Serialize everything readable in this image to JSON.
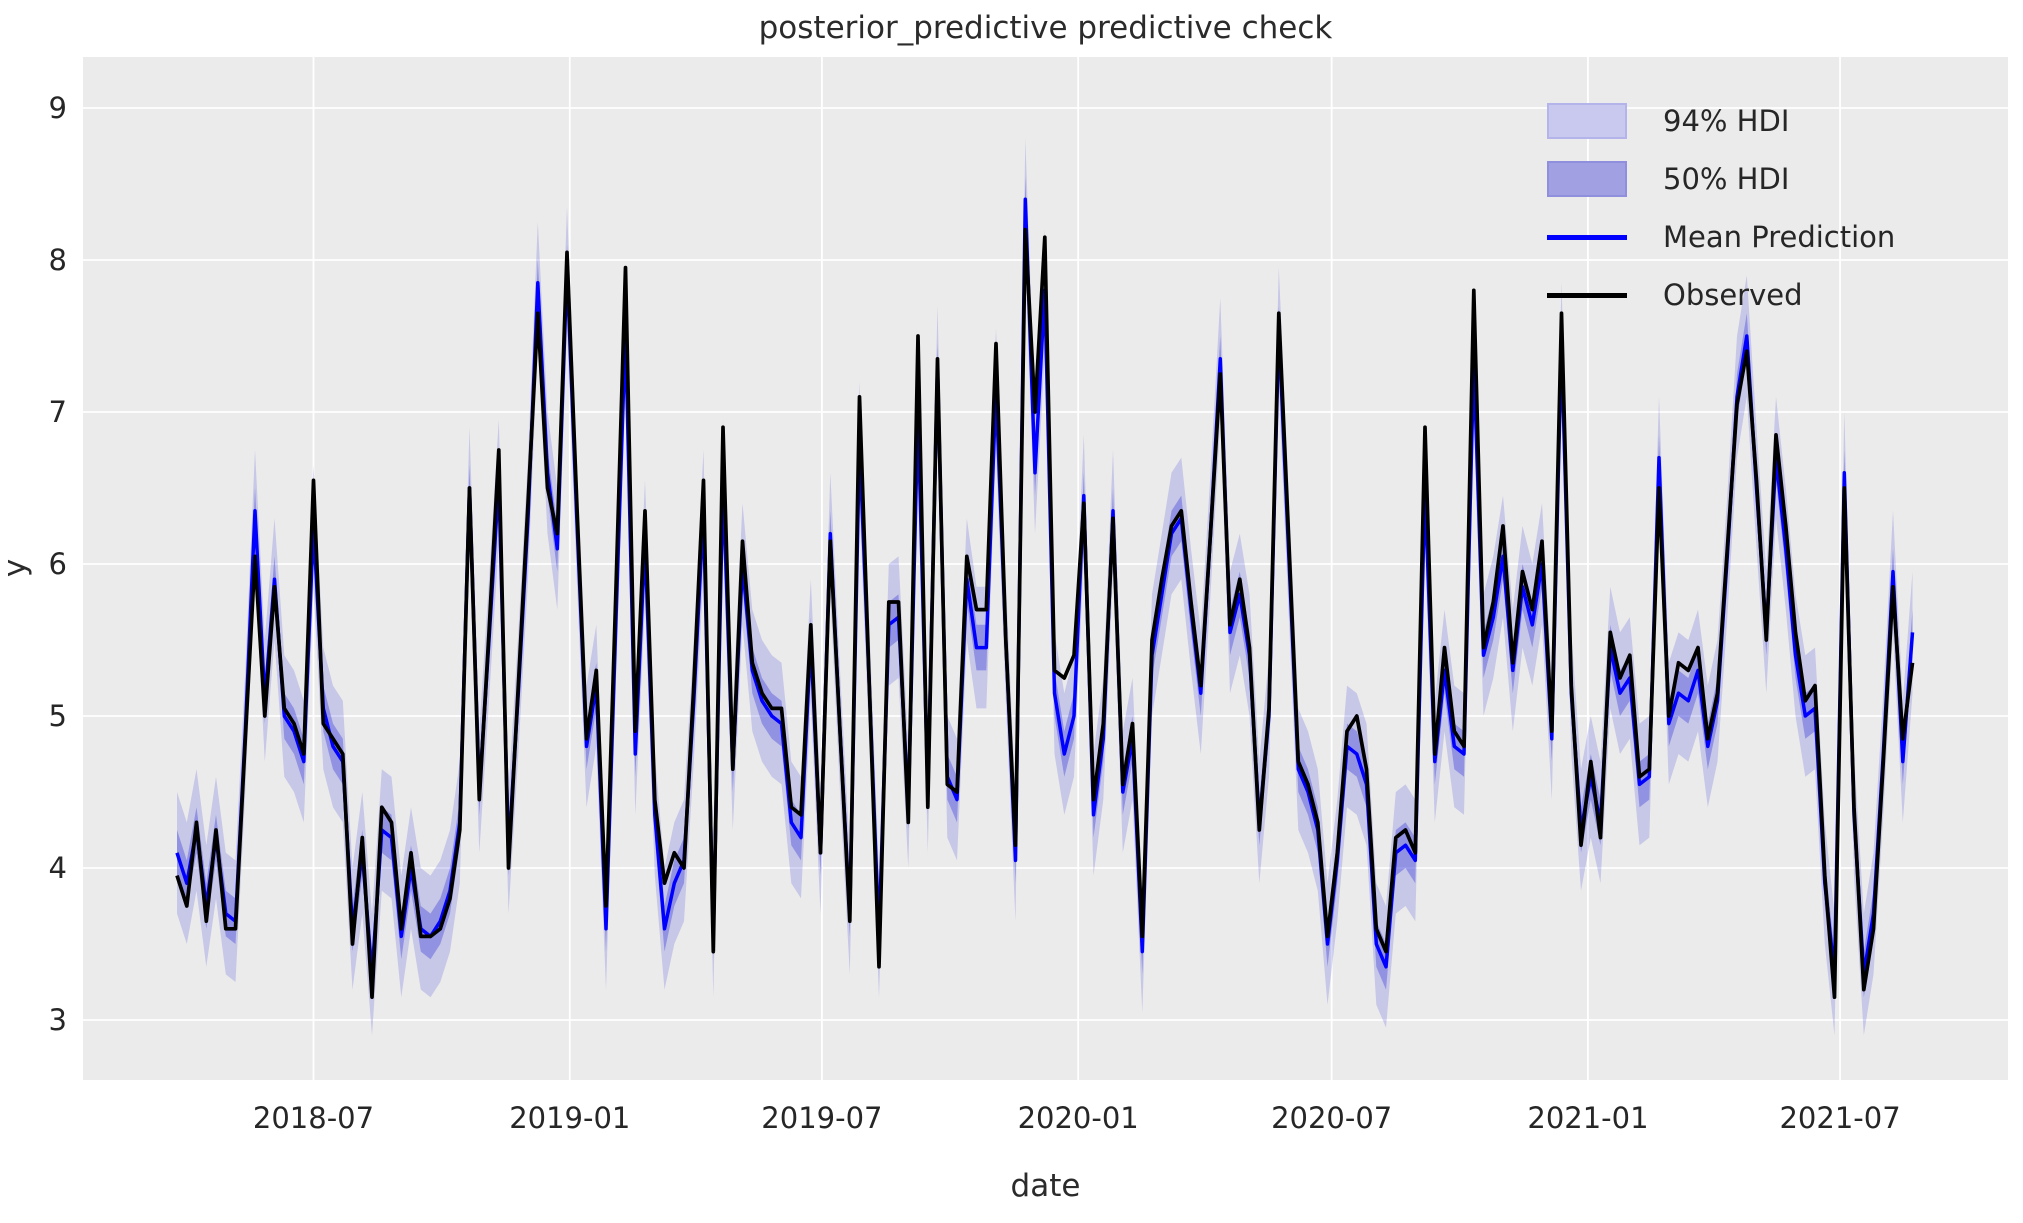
{
  "title": "posterior_predictive predictive check",
  "axes": {
    "xlabel": "date",
    "ylabel": "y",
    "x_ticks": [
      "2018-07",
      "2019-01",
      "2019-07",
      "2020-01",
      "2020-07",
      "2021-01",
      "2021-07"
    ],
    "y_ticks": [
      3,
      4,
      5,
      6,
      7,
      8,
      9
    ]
  },
  "legend": {
    "items": [
      {
        "label": "94% HDI",
        "swatch": "patch",
        "color": "#c9c9f0"
      },
      {
        "label": "50% HDI",
        "swatch": "patch",
        "color": "#a0a0e2"
      },
      {
        "label": "Mean Prediction",
        "swatch": "line",
        "color": "#0000ff"
      },
      {
        "label": "Observed",
        "swatch": "line",
        "color": "#000000"
      }
    ]
  },
  "colors": {
    "figure_bg": "#ffffff",
    "plot_bg": "#ebebeb",
    "grid": "#ffffff",
    "text": "#262626",
    "observed": "#000000",
    "mean": "#0000ff",
    "hdi94": "rgba(75,75,220,0.22)",
    "hdi50": "rgba(75,75,220,0.42)"
  },
  "chart_data": {
    "type": "line",
    "title": "posterior_predictive predictive check",
    "xlabel": "date",
    "ylabel": "y",
    "x_start": "2018-03-25",
    "x_step_days": 7,
    "n_points": 179,
    "x_tick_labels": [
      "2018-07",
      "2019-01",
      "2019-07",
      "2020-01",
      "2020-07",
      "2021-01",
      "2021-07"
    ],
    "y_tick_values": [
      3,
      4,
      5,
      6,
      7,
      8,
      9
    ],
    "ylim": [
      2.6,
      9.35
    ],
    "grid": true,
    "legend_position": "upper right",
    "series": [
      {
        "name": "Observed",
        "color": "#000000",
        "values": [
          3.95,
          3.75,
          4.3,
          3.65,
          4.25,
          3.6,
          3.6,
          4.85,
          6.05,
          5.0,
          5.85,
          5.05,
          4.95,
          4.75,
          6.55,
          4.95,
          4.85,
          4.75,
          3.5,
          4.2,
          3.15,
          4.4,
          4.3,
          3.6,
          4.1,
          3.55,
          3.55,
          3.6,
          3.8,
          4.25,
          6.5,
          4.45,
          5.55,
          6.75,
          4.0,
          5.2,
          6.4,
          7.65,
          6.5,
          6.2,
          8.05,
          6.4,
          4.85,
          5.3,
          3.75,
          5.8,
          7.95,
          4.9,
          6.35,
          4.45,
          3.9,
          4.1,
          4.0,
          5.2,
          6.55,
          3.45,
          6.9,
          4.65,
          6.15,
          5.35,
          5.15,
          5.05,
          5.05,
          4.4,
          4.35,
          5.6,
          4.1,
          6.15,
          4.9,
          3.65,
          7.1,
          5.2,
          3.35,
          5.75,
          5.75,
          4.3,
          7.5,
          4.4,
          7.35,
          4.55,
          4.5,
          6.05,
          5.7,
          5.7,
          7.45,
          5.5,
          4.15,
          8.2,
          7.0,
          8.15,
          5.3,
          5.25,
          5.4,
          6.4,
          4.45,
          4.95,
          6.3,
          4.55,
          4.95,
          3.55,
          5.5,
          5.9,
          6.25,
          6.35,
          5.75,
          5.2,
          6.2,
          7.25,
          5.6,
          5.9,
          5.45,
          4.25,
          5.05,
          7.65,
          6.2,
          4.7,
          4.55,
          4.3,
          3.55,
          4.1,
          4.9,
          5.0,
          4.65,
          3.6,
          3.45,
          4.2,
          4.25,
          4.1,
          6.9,
          4.75,
          5.45,
          4.9,
          4.8,
          7.8,
          5.45,
          5.75,
          6.25,
          5.35,
          5.95,
          5.7,
          6.15,
          4.9,
          7.65,
          5.2,
          4.15,
          4.7,
          4.2,
          5.55,
          5.25,
          5.4,
          4.6,
          4.65,
          6.5,
          5.0,
          5.35,
          5.3,
          5.45,
          4.85,
          5.15,
          6.1,
          7.05,
          7.4,
          6.55,
          5.5,
          6.85,
          6.25,
          5.55,
          5.1,
          5.2,
          3.95,
          3.15,
          6.5,
          4.4,
          3.2,
          3.6,
          4.7,
          5.85,
          4.85,
          5.35
        ]
      },
      {
        "name": "Mean Prediction",
        "color": "#0000ff",
        "values": [
          4.1,
          3.9,
          4.25,
          3.75,
          4.2,
          3.7,
          3.65,
          4.9,
          6.35,
          5.1,
          5.9,
          5.0,
          4.9,
          4.7,
          6.25,
          5.05,
          4.8,
          4.7,
          3.6,
          4.1,
          3.3,
          4.25,
          4.2,
          3.55,
          4.0,
          3.6,
          3.55,
          3.65,
          3.85,
          4.3,
          6.5,
          4.5,
          5.5,
          6.55,
          4.1,
          5.15,
          6.3,
          7.85,
          6.6,
          6.1,
          7.95,
          6.3,
          4.8,
          5.2,
          3.6,
          5.6,
          7.55,
          4.75,
          6.15,
          4.35,
          3.6,
          3.9,
          4.05,
          5.1,
          6.35,
          3.55,
          6.55,
          4.65,
          6.0,
          5.3,
          5.1,
          5.0,
          4.95,
          4.3,
          4.2,
          5.5,
          4.1,
          6.2,
          4.9,
          3.7,
          6.8,
          5.2,
          3.55,
          5.6,
          5.65,
          4.4,
          7.0,
          4.5,
          7.3,
          4.6,
          4.45,
          5.9,
          5.45,
          5.45,
          7.15,
          5.5,
          4.05,
          8.4,
          6.6,
          7.8,
          5.15,
          4.75,
          5.0,
          6.45,
          4.35,
          4.85,
          6.35,
          4.5,
          4.85,
          3.45,
          5.4,
          5.8,
          6.2,
          6.3,
          5.7,
          5.15,
          6.2,
          7.35,
          5.55,
          5.8,
          5.4,
          4.3,
          5.0,
          7.55,
          6.1,
          4.65,
          4.5,
          4.25,
          3.5,
          4.05,
          4.8,
          4.75,
          4.55,
          3.5,
          3.35,
          4.1,
          4.15,
          4.05,
          6.5,
          4.7,
          5.3,
          4.8,
          4.75,
          7.35,
          5.4,
          5.65,
          6.05,
          5.3,
          5.85,
          5.6,
          6.0,
          4.85,
          7.45,
          5.15,
          4.25,
          4.6,
          4.3,
          5.45,
          5.15,
          5.25,
          4.55,
          4.6,
          6.7,
          4.95,
          5.15,
          5.1,
          5.3,
          4.8,
          5.1,
          6.05,
          7.1,
          7.5,
          6.5,
          5.55,
          6.7,
          6.1,
          5.4,
          5.0,
          5.05,
          3.9,
          3.3,
          6.6,
          4.35,
          3.3,
          3.7,
          4.75,
          5.95,
          4.7,
          5.55
        ]
      }
    ],
    "bands": [
      {
        "name": "94% HDI",
        "around": "Mean Prediction",
        "halfwidth": 0.4,
        "color": "rgba(75,75,220,0.22)"
      },
      {
        "name": "50% HDI",
        "around": "Mean Prediction",
        "halfwidth": 0.15,
        "color": "rgba(75,75,220,0.42)"
      }
    ]
  }
}
